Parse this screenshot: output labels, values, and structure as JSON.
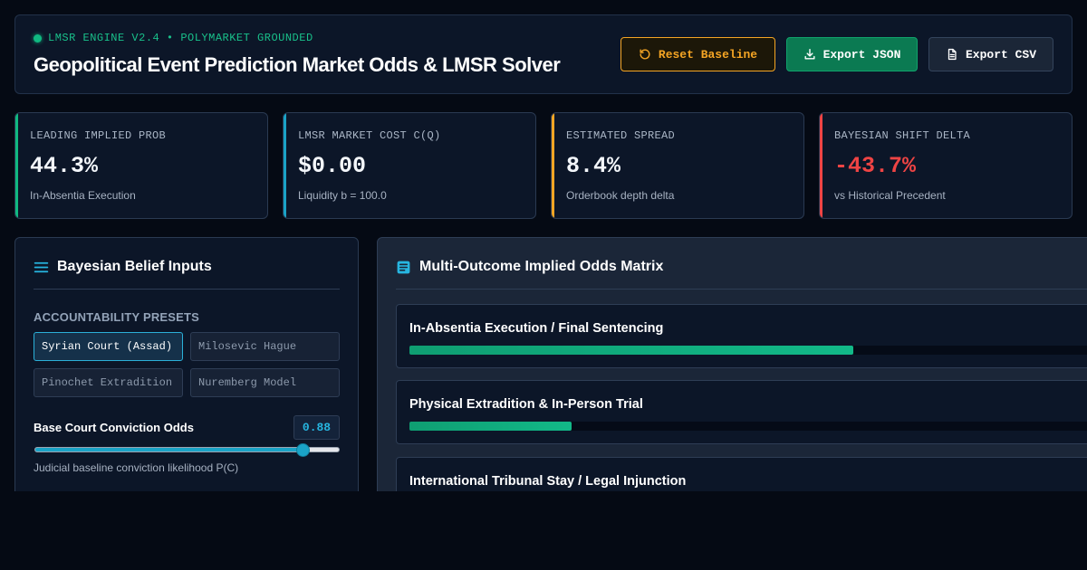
{
  "header": {
    "engine": "LMSR ENGINE V2.4 • POLYMARKET GROUNDED",
    "title": "Geopolitical Event Prediction Market Odds & LMSR Solver",
    "buttons": {
      "reset": "Reset Baseline",
      "export_json": "Export JSON",
      "export_csv": "Export CSV"
    }
  },
  "colors": {
    "green": "#10b981",
    "cyan": "#1aa3c7",
    "amber": "#f5a524",
    "red": "#ef4444"
  },
  "stats": [
    {
      "label": "LEADING IMPLIED PROB",
      "value": "44.3%",
      "sub": "In-Absentia Execution",
      "accent": "#10b981",
      "value_color": "#f3f6fa"
    },
    {
      "label": "LMSR MARKET COST C(Q)",
      "value": "$0.00",
      "sub": "Liquidity b = 100.0",
      "accent": "#1aa3c7",
      "value_color": "#f3f6fa"
    },
    {
      "label": "ESTIMATED SPREAD",
      "value": "8.4%",
      "sub": "Orderbook depth delta",
      "accent": "#f5a524",
      "value_color": "#f3f6fa"
    },
    {
      "label": "BAYESIAN SHIFT DELTA",
      "value": "-43.7%",
      "sub": "vs Historical Precedent",
      "accent": "#ef4444",
      "value_color": "#ef4444"
    }
  ],
  "beliefs": {
    "title": "Bayesian Belief Inputs",
    "icon": "list-icon",
    "presets_label": "ACCOUNTABILITY PRESETS",
    "presets": [
      {
        "label": "Syrian Court (Assad)",
        "active": true
      },
      {
        "label": "Milosevic Hague",
        "active": false
      },
      {
        "label": "Pinochet Extradition",
        "active": false
      },
      {
        "label": "Nuremberg Model",
        "active": false
      }
    ],
    "slider": {
      "label": "Base Court Conviction Odds",
      "value_text": "0.88",
      "value": 0.88,
      "help": "Judicial baseline conviction likelihood P(C)"
    }
  },
  "matrix": {
    "title": "Multi-Outcome Implied Odds Matrix",
    "icon": "document-list-icon",
    "outcomes": [
      {
        "name": "In-Absentia Execution / Final Sentencing",
        "fill": 0.64
      },
      {
        "name": "Physical Extradition & In-Person Trial",
        "fill": 0.234
      },
      {
        "name": "International Tribunal Stay / Legal Injunction",
        "fill": 0.0
      }
    ]
  }
}
